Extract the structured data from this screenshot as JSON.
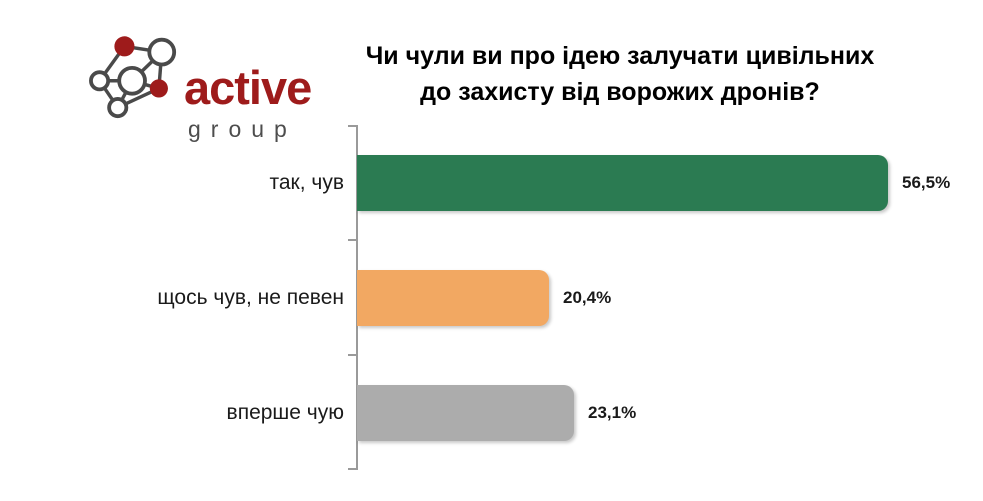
{
  "logo": {
    "brand": "active",
    "sub_brand": "group",
    "icon": "network-graph-icon"
  },
  "colors": {
    "brand_red": "#9E1B1B",
    "brand_gray": "#4D4D4D",
    "node_stroke": "#4A4A4A",
    "axis": "#9A9A9A",
    "text": "#1A1A1A"
  },
  "chart_data": {
    "type": "bar",
    "orientation": "horizontal",
    "title": "Чи чули ви про ідею залучати цивільних до захисту від ворожих дронів?",
    "title_lines": [
      "Чи чули ви про ідею залучати цивільних",
      "до захисту від ворожих дронів?"
    ],
    "categories": [
      "так, чув",
      "щось чув, не певен",
      "вперше чую"
    ],
    "values": [
      56.5,
      20.4,
      23.1
    ],
    "value_labels": [
      "56,5%",
      "20,4%",
      "23,1%"
    ],
    "colors": [
      "#2B7B52",
      "#F2A862",
      "#ACACAC"
    ],
    "xlim": [
      0,
      60
    ],
    "grid": false,
    "legend": false
  }
}
